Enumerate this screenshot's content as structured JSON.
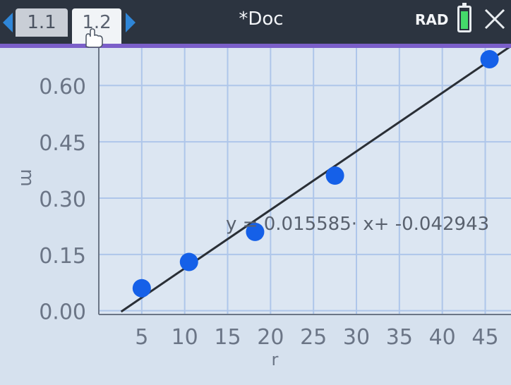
{
  "header": {
    "tabs": [
      {
        "label": "1.1"
      },
      {
        "label": "1.2"
      }
    ],
    "doc_title": "*Doc",
    "angle_mode": "RAD",
    "battery_level": 0.9
  },
  "icons": {
    "nav_left": "arrow-left-icon",
    "nav_right": "arrow-right-icon",
    "battery": "battery-icon",
    "close": "close-icon",
    "pointer": "hand-pointer-icon"
  },
  "colors": {
    "accent": "#7b5fc9",
    "nav_arrow": "#2f86d8",
    "points": "#1560e8",
    "regression_line": "#2a2f36",
    "grid": "#aec6ea",
    "plot_bg": "#dce6f2"
  },
  "chart_data": {
    "type": "scatter",
    "xlabel": "r",
    "ylabel": "m",
    "xlim": [
      0,
      48
    ],
    "ylim": [
      -0.01,
      0.7
    ],
    "x_ticks": [
      5,
      10,
      15,
      20,
      25,
      30,
      35,
      40,
      45
    ],
    "x_tick_labels": [
      "5",
      "10",
      "15",
      "20",
      "25",
      "30",
      "35",
      "40",
      "45"
    ],
    "y_ticks": [
      0.0,
      0.15,
      0.3,
      0.45,
      0.6
    ],
    "y_tick_labels": [
      "0.00",
      "0.15",
      "0.30",
      "0.45",
      "0.60"
    ],
    "grid": true,
    "points": [
      {
        "x": 5.0,
        "y": 0.06
      },
      {
        "x": 10.5,
        "y": 0.13
      },
      {
        "x": 18.2,
        "y": 0.21
      },
      {
        "x": 27.5,
        "y": 0.36
      },
      {
        "x": 45.5,
        "y": 0.67
      }
    ],
    "regression": {
      "slope": 0.015585,
      "intercept": -0.042943,
      "label": "y = 0.015585· x+ -0.042943"
    }
  }
}
